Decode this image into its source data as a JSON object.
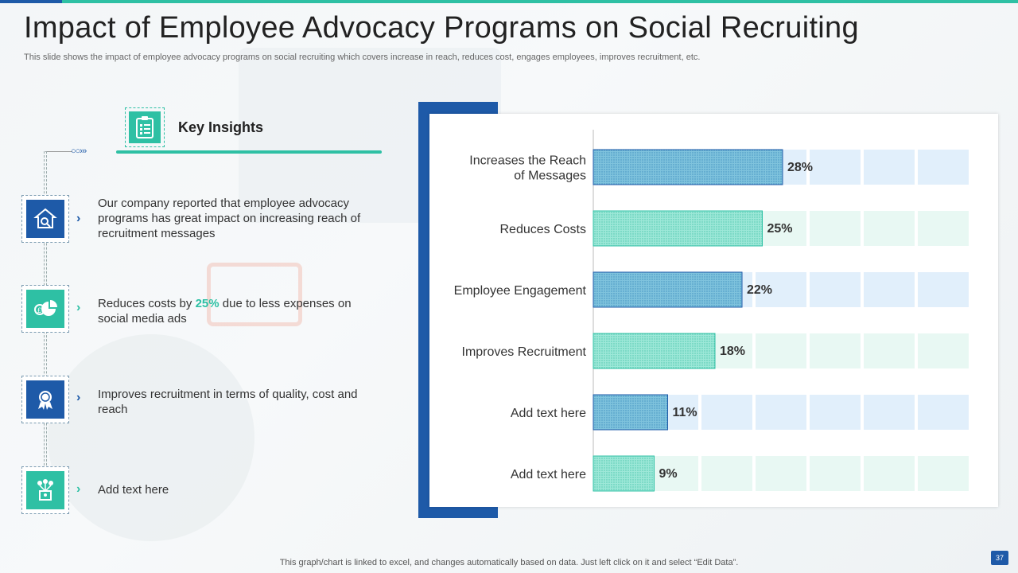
{
  "header": {
    "title": "Impact of Employee Advocacy Programs on Social Recruiting",
    "subtitle": "This slide shows the impact of employee advocacy programs on social recruiting which covers increase in reach, reduces cost, engages employees, improves recruitment, etc."
  },
  "insights": {
    "title": "Key Insights",
    "items": [
      {
        "text": "Our company reported that employee advocacy programs has great impact on increasing reach of recruitment messages"
      },
      {
        "text_before": "Reduces costs by ",
        "highlight": "25%",
        "text_after": " due to less expenses on social media ads"
      },
      {
        "text": "Improves recruitment in terms of quality, cost and reach"
      },
      {
        "text": "Add text here"
      }
    ]
  },
  "chart_data": {
    "type": "bar",
    "orientation": "horizontal",
    "title": "",
    "categories": [
      "Increases the Reach of Messages",
      "Reduces Costs",
      "Employee Engagement",
      "Improves Recruitment",
      "Add text here",
      "Add text here"
    ],
    "values": [
      28,
      25,
      22,
      18,
      11,
      9
    ],
    "labels": [
      "28%",
      "25%",
      "22%",
      "18%",
      "11%",
      "9%"
    ],
    "xlim": [
      0,
      56
    ],
    "xlabel": "",
    "ylabel": ""
  },
  "colors": {
    "blue": "#1e5aa8",
    "teal": "#2ec0a4",
    "bar_blue_fill": "#7fc3dd",
    "bar_teal_fill": "#9de8d8",
    "track_blue": "#e1effb",
    "track_teal": "#e8f8f3"
  },
  "footer": {
    "note": "This graph/chart is linked to excel, and changes automatically based on data. Just left click on it and select “Edit Data”.",
    "page": "37"
  }
}
